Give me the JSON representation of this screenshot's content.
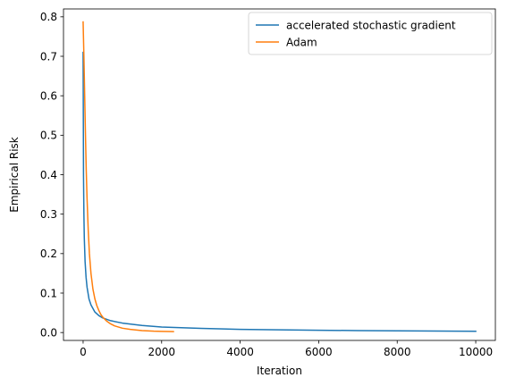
{
  "chart_data": {
    "type": "line",
    "xlabel": "Iteration",
    "ylabel": "Empirical Risk",
    "xlim": [
      -500,
      10500
    ],
    "ylim": [
      -0.02,
      0.82
    ],
    "xticks": [
      0,
      2000,
      4000,
      6000,
      8000,
      10000
    ],
    "xtick_labels": [
      "0",
      "2000",
      "4000",
      "6000",
      "8000",
      "10000"
    ],
    "yticks": [
      0.0,
      0.1,
      0.2,
      0.3,
      0.4,
      0.5,
      0.6,
      0.7,
      0.8
    ],
    "ytick_labels": [
      "0.0",
      "0.1",
      "0.2",
      "0.3",
      "0.4",
      "0.5",
      "0.6",
      "0.7",
      "0.8"
    ],
    "grid": false,
    "legend_position": "top-right",
    "series": [
      {
        "name": "accelerated stochastic gradient",
        "color": "#1f77b4",
        "x": [
          0,
          10,
          20,
          30,
          50,
          75,
          100,
          150,
          200,
          300,
          400,
          500,
          700,
          1000,
          1500,
          2000,
          3000,
          4000,
          5000,
          6000,
          7000,
          8000,
          9000,
          10000
        ],
        "y": [
          0.71,
          0.4,
          0.3,
          0.24,
          0.18,
          0.14,
          0.115,
          0.085,
          0.07,
          0.052,
          0.043,
          0.037,
          0.03,
          0.024,
          0.018,
          0.014,
          0.0105,
          0.008,
          0.0068,
          0.0058,
          0.005,
          0.0043,
          0.0037,
          0.0032
        ]
      },
      {
        "name": "Adam",
        "color": "#ff7f0e",
        "x": [
          0,
          20,
          40,
          60,
          80,
          100,
          130,
          160,
          200,
          250,
          300,
          350,
          400,
          450,
          500,
          600,
          700,
          800,
          1000,
          1200,
          1500,
          1800,
          2000,
          2300
        ],
        "y": [
          0.787,
          0.7,
          0.6,
          0.5,
          0.41,
          0.34,
          0.26,
          0.2,
          0.15,
          0.11,
          0.085,
          0.068,
          0.056,
          0.046,
          0.039,
          0.029,
          0.022,
          0.017,
          0.011,
          0.008,
          0.005,
          0.0035,
          0.003,
          0.0025
        ]
      }
    ]
  }
}
